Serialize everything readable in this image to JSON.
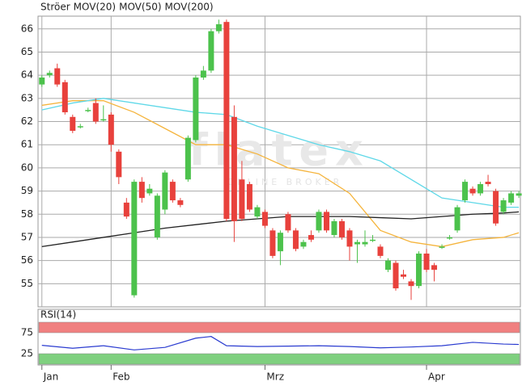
{
  "chart_data": [
    {
      "type": "candlestick",
      "name": "Ströer",
      "name_color": "#e8413c",
      "watermark": "flatex",
      "watermark_sub": "ONLINE BROKER",
      "up_color": "#4cc24c",
      "down_color": "#e8413c",
      "x": [
        0,
        1,
        2,
        3,
        4,
        5,
        6,
        7,
        8,
        9,
        10,
        11,
        12,
        13,
        14,
        15,
        16,
        17,
        18,
        19,
        20,
        21,
        22,
        23,
        24,
        25,
        26,
        27,
        28,
        29,
        30,
        31,
        32,
        33,
        34,
        35,
        36,
        37,
        38,
        39,
        40,
        41,
        42,
        43,
        44,
        45,
        46,
        47,
        48,
        49,
        50,
        51,
        52,
        53,
        54,
        55,
        56,
        57,
        58,
        59,
        60,
        61,
        62
      ],
      "open": [
        63.6,
        64.0,
        64.3,
        63.7,
        62.2,
        61.8,
        62.5,
        62.8,
        62.1,
        62.3,
        60.7,
        58.5,
        54.5,
        59.4,
        58.9,
        57.0,
        58.2,
        59.4,
        58.6,
        59.5,
        61.2,
        63.9,
        64.2,
        65.9,
        66.3,
        62.2,
        59.5,
        59.3,
        57.9,
        58.1,
        57.3,
        56.4,
        58.0,
        57.3,
        56.6,
        57.1,
        57.3,
        58.1,
        57.1,
        57.7,
        57.3,
        56.7,
        56.7,
        56.9,
        56.6,
        55.6,
        55.9,
        55.4,
        55.1,
        54.9,
        56.3,
        55.8,
        56.6,
        57.0,
        57.3,
        58.6,
        59.1,
        58.9,
        59.4,
        59.0,
        58.1,
        58.5,
        58.8
      ],
      "high": [
        64.0,
        64.2,
        64.5,
        63.8,
        62.3,
        61.9,
        62.6,
        63.0,
        62.7,
        62.4,
        60.8,
        58.7,
        59.5,
        59.6,
        59.3,
        58.9,
        59.9,
        59.5,
        58.7,
        61.4,
        64.0,
        64.4,
        66.0,
        66.4,
        66.4,
        62.7,
        60.3,
        59.4,
        58.4,
        58.2,
        57.4,
        57.3,
        58.1,
        57.4,
        56.9,
        57.3,
        58.2,
        58.2,
        57.8,
        57.8,
        57.4,
        56.9,
        57.3,
        57.1,
        56.7,
        56.1,
        56.0,
        55.6,
        55.2,
        56.4,
        56.5,
        55.9,
        56.7,
        57.1,
        58.4,
        59.5,
        59.2,
        59.4,
        59.7,
        59.1,
        58.7,
        59.0,
        59.0
      ],
      "low": [
        63.5,
        63.9,
        63.5,
        62.3,
        61.5,
        61.7,
        62.4,
        61.9,
        62.0,
        60.7,
        59.3,
        57.8,
        54.4,
        58.5,
        58.8,
        56.9,
        58.0,
        58.5,
        58.3,
        59.4,
        61.1,
        63.8,
        64.1,
        65.8,
        57.7,
        56.8,
        57.7,
        58.1,
        57.8,
        57.4,
        56.1,
        55.8,
        57.2,
        56.4,
        56.5,
        56.8,
        57.2,
        57.2,
        57.0,
        56.9,
        56.0,
        55.9,
        56.6,
        56.8,
        56.1,
        55.5,
        54.7,
        55.2,
        54.3,
        54.8,
        55.5,
        55.1,
        56.5,
        56.9,
        57.2,
        58.5,
        58.8,
        58.8,
        59.2,
        57.5,
        58.0,
        58.4,
        58.7
      ],
      "close": [
        63.9,
        64.1,
        63.6,
        62.4,
        61.6,
        61.8,
        62.5,
        62.0,
        62.1,
        61.0,
        59.6,
        57.9,
        59.4,
        58.7,
        59.1,
        58.8,
        59.8,
        58.6,
        58.4,
        61.3,
        63.9,
        64.2,
        65.9,
        66.2,
        57.8,
        57.7,
        57.8,
        58.2,
        58.3,
        57.5,
        56.2,
        57.2,
        57.3,
        56.5,
        56.8,
        56.9,
        58.1,
        57.3,
        57.7,
        57.0,
        56.6,
        56.8,
        56.8,
        56.9,
        56.2,
        56.0,
        54.8,
        55.3,
        54.9,
        56.3,
        55.6,
        55.6,
        56.6,
        57.0,
        58.3,
        59.4,
        58.9,
        59.3,
        59.3,
        57.6,
        58.6,
        58.9,
        58.9
      ],
      "lines": [
        {
          "name": "MOV(20)",
          "color": "#f5b43c",
          "x": [
            0,
            4,
            8,
            12,
            16,
            20,
            24,
            28,
            32,
            36,
            40,
            44,
            48,
            52,
            56,
            60,
            62
          ],
          "values": [
            62.7,
            62.9,
            62.9,
            62.4,
            61.7,
            61.0,
            61.0,
            60.6,
            60.0,
            59.75,
            58.9,
            57.3,
            56.8,
            56.6,
            56.9,
            57.0,
            57.2
          ]
        },
        {
          "name": "MOV(50)",
          "color": "#5fd8e8",
          "x": [
            0,
            4,
            8,
            12,
            16,
            20,
            24,
            28,
            32,
            36,
            40,
            44,
            48,
            52,
            56,
            60,
            62
          ],
          "values": [
            62.5,
            62.8,
            63.0,
            62.8,
            62.6,
            62.4,
            62.3,
            61.8,
            61.4,
            61.0,
            60.7,
            60.3,
            59.5,
            58.7,
            58.5,
            58.3,
            58.3
          ]
        },
        {
          "name": "MOV(200)",
          "color": "#222222",
          "x": [
            0,
            4,
            8,
            12,
            16,
            20,
            24,
            28,
            32,
            36,
            40,
            44,
            48,
            52,
            56,
            60,
            62
          ],
          "values": [
            56.6,
            56.8,
            57.0,
            57.2,
            57.4,
            57.55,
            57.7,
            57.8,
            57.9,
            57.9,
            57.9,
            57.85,
            57.8,
            57.9,
            58.0,
            58.05,
            58.1
          ]
        }
      ],
      "xlim": [
        -0.5,
        62.2
      ],
      "ylim": [
        54.0,
        66.55
      ],
      "yticks": [
        55,
        56,
        57,
        58,
        59,
        60,
        61,
        62,
        63,
        64,
        65,
        66
      ],
      "xticks": [
        {
          "value": 0,
          "label": "Jan"
        },
        {
          "value": 9,
          "label": "Feb"
        },
        {
          "value": 29,
          "label": "Mrz"
        },
        {
          "value": 50,
          "label": "Apr"
        }
      ],
      "grid": true
    },
    {
      "type": "line",
      "title": "RSI(14)",
      "title_color": "#2a3bd0",
      "series": [
        {
          "color": "#2a3bd0",
          "x": [
            0,
            4,
            8,
            12,
            16,
            20,
            22,
            24,
            28,
            32,
            36,
            40,
            44,
            48,
            52,
            56,
            60,
            62
          ],
          "values": [
            45,
            38,
            44,
            34,
            40,
            62,
            66,
            44,
            42,
            43,
            44,
            42,
            39,
            41,
            44,
            52,
            48,
            47
          ]
        }
      ],
      "bands": [
        {
          "from": 75,
          "to": 100,
          "color": "#f08080"
        },
        {
          "from": 0,
          "to": 25,
          "color": "#7fd07f"
        }
      ],
      "xlim": [
        -0.5,
        62.2
      ],
      "ylim": [
        0,
        100
      ],
      "yticks": [
        25,
        75
      ]
    }
  ]
}
